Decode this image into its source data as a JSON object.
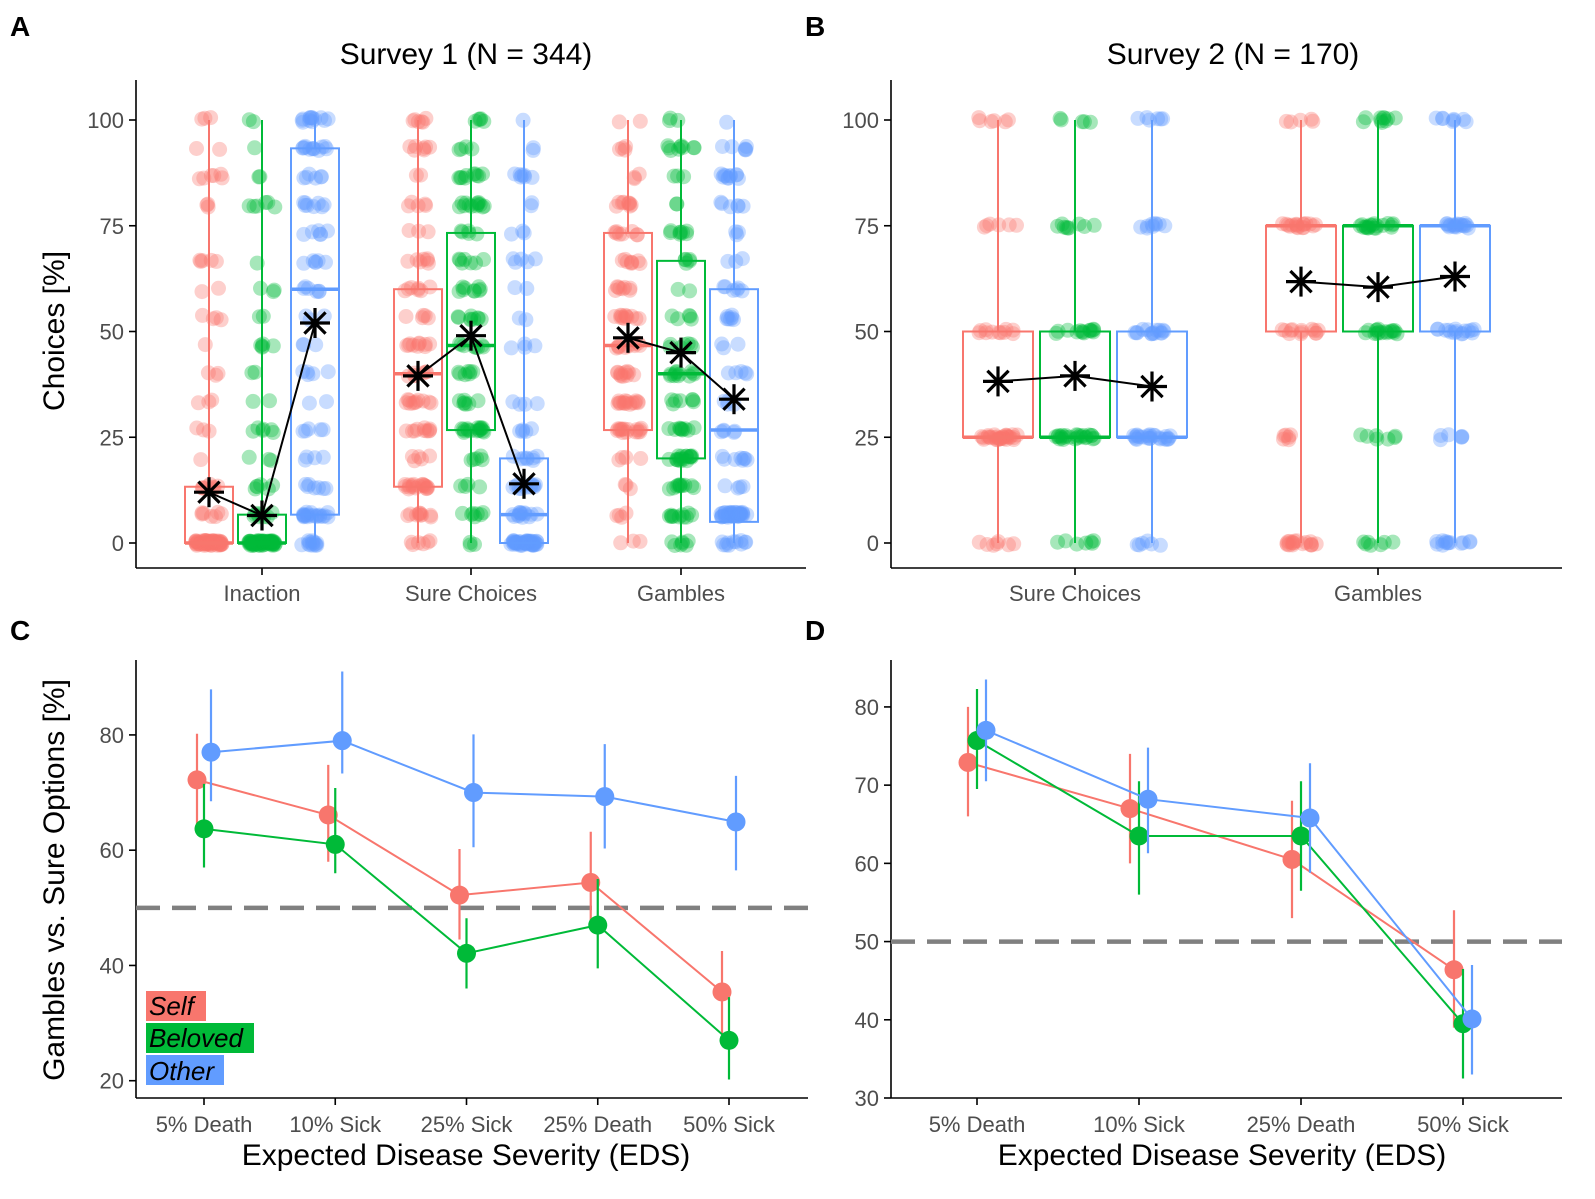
{
  "colors": {
    "self": "#F8766D",
    "beloved": "#00BA38",
    "other": "#619CFF",
    "axis": "#000000",
    "reference": "#808080"
  },
  "legend": [
    {
      "key": "self",
      "label": "Self"
    },
    {
      "key": "beloved",
      "label": "Beloved"
    },
    {
      "key": "other",
      "label": "Other"
    }
  ],
  "chart_data": [
    {
      "panel": "A",
      "type": "box",
      "title": "Survey 1 (N = 344)",
      "ylabel": "Choices [%]",
      "xlabel": "",
      "ylim": [
        0,
        100
      ],
      "yticks": [
        0,
        25,
        50,
        75,
        100
      ],
      "categories": [
        "Inaction",
        "Sure Choices",
        "Gambles"
      ],
      "groups": [
        "Self",
        "Beloved",
        "Other"
      ],
      "boxes": [
        [
          {
            "q1": 0,
            "median": 0,
            "q3": 13.3,
            "mean": 12
          },
          {
            "q1": 0,
            "median": 0,
            "q3": 6.7,
            "mean": 6.5
          },
          {
            "q1": 6.7,
            "median": 60,
            "q3": 93.3,
            "mean": 52
          }
        ],
        [
          {
            "q1": 13.3,
            "median": 40,
            "q3": 60,
            "mean": 39.5
          },
          {
            "q1": 26.7,
            "median": 46.7,
            "q3": 73.3,
            "mean": 49
          },
          {
            "q1": 0,
            "median": 6.7,
            "q3": 20,
            "mean": 14
          }
        ],
        [
          {
            "q1": 26.7,
            "median": 46.7,
            "q3": 73.3,
            "mean": 48.5
          },
          {
            "q1": 20,
            "median": 40,
            "q3": 66.7,
            "mean": 45
          },
          {
            "q1": 5,
            "median": 26.7,
            "q3": 60,
            "mean": 34
          }
        ]
      ]
    },
    {
      "panel": "B",
      "type": "box",
      "title": "Survey 2 (N = 170)",
      "ylabel": "",
      "xlabel": "",
      "ylim": [
        0,
        100
      ],
      "yticks": [
        0,
        25,
        50,
        75,
        100
      ],
      "categories": [
        "Sure Choices",
        "Gambles"
      ],
      "groups": [
        "Self",
        "Beloved",
        "Other"
      ],
      "boxes": [
        [
          {
            "q1": 25,
            "median": 25,
            "q3": 50,
            "mean": 38.2
          },
          {
            "q1": 25,
            "median": 25,
            "q3": 50,
            "mean": 39.5
          },
          {
            "q1": 25,
            "median": 25,
            "q3": 50,
            "mean": 37
          }
        ],
        [
          {
            "q1": 50,
            "median": 75,
            "q3": 75,
            "mean": 61.8
          },
          {
            "q1": 50,
            "median": 75,
            "q3": 75,
            "mean": 60.5
          },
          {
            "q1": 50,
            "median": 75,
            "q3": 75,
            "mean": 63
          }
        ]
      ]
    },
    {
      "panel": "C",
      "type": "line",
      "title": "",
      "ylabel": "Gambles vs. Sure Options [%]",
      "xlabel": "Expected Disease Severity (EDS)",
      "ylim": [
        17,
        93
      ],
      "yticks": [
        20,
        40,
        60,
        80
      ],
      "reference_line": 50,
      "categories": [
        "5% Death",
        "10% Sick",
        "25% Sick",
        "25% Death",
        "50% Sick"
      ],
      "series": [
        {
          "name": "Self",
          "values": [
            72.2,
            66.1,
            52.2,
            54.4,
            35.4
          ],
          "lower": [
            64.5,
            58,
            44.5,
            46.5,
            28
          ],
          "upper": [
            80.2,
            74.8,
            60.2,
            63.2,
            42.5
          ]
        },
        {
          "name": "Beloved",
          "values": [
            63.7,
            61,
            42.1,
            47,
            27
          ],
          "lower": [
            57,
            56,
            36,
            39.5,
            20.2
          ],
          "upper": [
            71.5,
            70.8,
            48.2,
            55,
            34.5
          ]
        },
        {
          "name": "Other",
          "values": [
            77,
            79,
            70,
            69.3,
            64.9
          ],
          "lower": [
            68.5,
            73.3,
            60.5,
            60.3,
            56.5
          ],
          "upper": [
            87.9,
            91,
            80.1,
            78.4,
            72.9
          ]
        }
      ]
    },
    {
      "panel": "D",
      "type": "line",
      "title": "",
      "ylabel": "",
      "xlabel": "Expected Disease Severity (EDS)",
      "ylim": [
        30,
        86
      ],
      "yticks": [
        30,
        40,
        50,
        60,
        70,
        80
      ],
      "reference_line": 50,
      "categories": [
        "5% Death",
        "10% Sick",
        "25% Death",
        "50% Sick"
      ],
      "series": [
        {
          "name": "Self",
          "values": [
            72.9,
            67,
            60.5,
            46.4
          ],
          "lower": [
            66,
            60,
            53,
            39
          ],
          "upper": [
            80,
            74,
            68,
            54
          ]
        },
        {
          "name": "Beloved",
          "values": [
            75.7,
            63.5,
            63.5,
            39.5
          ],
          "lower": [
            69.5,
            56,
            56.5,
            32.5
          ],
          "upper": [
            82.3,
            70.5,
            70.5,
            46.5
          ]
        },
        {
          "name": "Other",
          "values": [
            77,
            68.2,
            65.8,
            40.1
          ],
          "lower": [
            70.5,
            61.3,
            58.8,
            33
          ],
          "upper": [
            83.5,
            74.8,
            72.8,
            47
          ]
        }
      ]
    }
  ]
}
